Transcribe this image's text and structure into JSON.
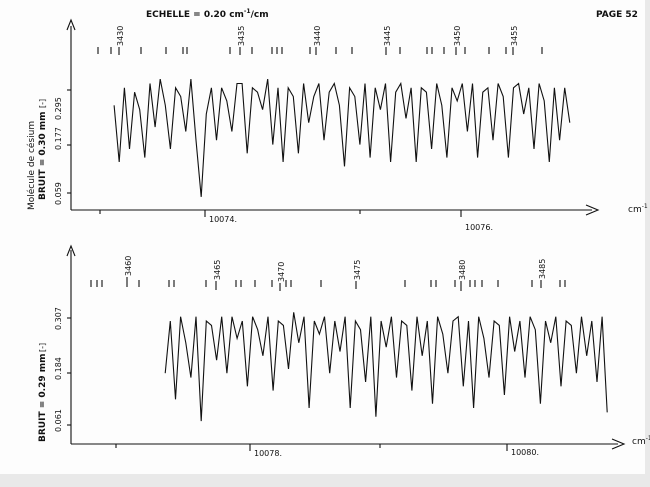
{
  "header": {
    "scale_prefix": "ECHELLE = 0.20 cm",
    "scale_sup": "-1",
    "scale_suffix": "/cm",
    "page": "PAGE 52"
  },
  "chart_data": [
    {
      "type": "line",
      "panel": "top",
      "side_labels": {
        "molecule": "Molécule de césium",
        "noise": "BRUIT = 0.30 mm",
        "bracket": "[-]"
      },
      "y_ticks": [
        "0.295",
        "0.177",
        "0.059"
      ],
      "x_calibration": [
        {
          "label": "10074.",
          "value": 10074
        },
        {
          "label": "10076.",
          "value": 10076
        }
      ],
      "x_unit": "cm",
      "x_unit_sup": "-1",
      "line_numbers": [
        "3430",
        "3435",
        "3440",
        "3445",
        "3450",
        "3455"
      ],
      "series": [
        {
          "x": [
            10073.29,
            10073.33,
            10073.37,
            10073.41,
            10073.45,
            10073.49,
            10073.53,
            10073.57,
            10073.61,
            10073.65,
            10073.69,
            10073.73,
            10073.77,
            10073.81,
            10073.85,
            10073.89,
            10073.93,
            10073.97,
            10074.01,
            10074.05,
            10074.09,
            10074.13,
            10074.17,
            10074.21,
            10074.25,
            10074.29,
            10074.33,
            10074.37,
            10074.41,
            10074.45,
            10074.49,
            10074.53,
            10074.57,
            10074.61,
            10074.65,
            10074.69,
            10074.73,
            10074.77,
            10074.81,
            10074.85,
            10074.89,
            10074.93,
            10074.97,
            10075.01,
            10075.05,
            10075.09,
            10075.13,
            10075.17,
            10075.21,
            10075.25,
            10075.29,
            10075.33,
            10075.37,
            10075.41,
            10075.45,
            10075.49,
            10075.53,
            10075.57,
            10075.61,
            10075.65,
            10075.69,
            10075.73,
            10075.77,
            10075.81,
            10075.85,
            10075.89,
            10075.93,
            10075.97,
            10076.01,
            10076.05,
            10076.09,
            10076.13,
            10076.17,
            10076.21,
            10076.25,
            10076.29,
            10076.33,
            10076.37,
            10076.41,
            10076.45,
            10076.49,
            10076.53,
            10076.57,
            10076.61,
            10076.65,
            10076.69,
            10076.73,
            10076.77,
            10076.81,
            10076.85
          ],
          "y": [
            0.26,
            0.13,
            0.3,
            0.16,
            0.29,
            0.25,
            0.14,
            0.31,
            0.21,
            0.32,
            0.26,
            0.16,
            0.3,
            0.28,
            0.2,
            0.32,
            0.18,
            0.05,
            0.24,
            0.3,
            0.18,
            0.3,
            0.27,
            0.2,
            0.31,
            0.31,
            0.15,
            0.3,
            0.29,
            0.25,
            0.32,
            0.17,
            0.3,
            0.13,
            0.3,
            0.28,
            0.15,
            0.31,
            0.22,
            0.28,
            0.31,
            0.18,
            0.29,
            0.31,
            0.26,
            0.12,
            0.3,
            0.28,
            0.17,
            0.31,
            0.14,
            0.3,
            0.25,
            0.31,
            0.13,
            0.29,
            0.31,
            0.23,
            0.3,
            0.13,
            0.3,
            0.29,
            0.16,
            0.31,
            0.26,
            0.14,
            0.3,
            0.27,
            0.31,
            0.2,
            0.31,
            0.14,
            0.29,
            0.3,
            0.18,
            0.31,
            0.28,
            0.14,
            0.3,
            0.31,
            0.24,
            0.3,
            0.16,
            0.31,
            0.27,
            0.13,
            0.3,
            0.18,
            0.3,
            0.22
          ]
        }
      ]
    },
    {
      "type": "line",
      "panel": "bottom",
      "side_labels": {
        "noise": "BRUIT = 0.29 mm",
        "bracket": "[-]"
      },
      "y_ticks": [
        "0.307",
        "0.184",
        "0.061"
      ],
      "x_calibration": [
        {
          "label": "10078.",
          "value": 10078
        },
        {
          "label": "10080.",
          "value": 10080
        }
      ],
      "x_unit": "cm",
      "x_unit_sup": "-1",
      "line_numbers": [
        "3460",
        "3465",
        "3470",
        "3475",
        "3480",
        "3485"
      ],
      "series": [
        {
          "x": [
            10077.34,
            10077.38,
            10077.42,
            10077.46,
            10077.5,
            10077.54,
            10077.58,
            10077.62,
            10077.66,
            10077.7,
            10077.74,
            10077.78,
            10077.82,
            10077.86,
            10077.9,
            10077.94,
            10077.98,
            10078.02,
            10078.06,
            10078.1,
            10078.14,
            10078.18,
            10078.22,
            10078.26,
            10078.3,
            10078.34,
            10078.38,
            10078.42,
            10078.46,
            10078.5,
            10078.54,
            10078.58,
            10078.62,
            10078.66,
            10078.7,
            10078.74,
            10078.78,
            10078.82,
            10078.86,
            10078.9,
            10078.94,
            10078.98,
            10079.02,
            10079.06,
            10079.1,
            10079.14,
            10079.18,
            10079.22,
            10079.26,
            10079.3,
            10079.34,
            10079.38,
            10079.42,
            10079.46,
            10079.5,
            10079.54,
            10079.58,
            10079.62,
            10079.66,
            10079.7,
            10079.74,
            10079.78,
            10079.82,
            10079.86,
            10079.9,
            10079.94,
            10079.98,
            10080.02,
            10080.06,
            10080.1,
            10080.14,
            10080.18,
            10080.22,
            10080.26,
            10080.3,
            10080.34,
            10080.38,
            10080.42,
            10080.46,
            10080.5,
            10080.54,
            10080.58,
            10080.62,
            10080.66,
            10080.7,
            10080.74,
            10080.78
          ],
          "y": [
            0.18,
            0.3,
            0.12,
            0.31,
            0.25,
            0.17,
            0.31,
            0.07,
            0.3,
            0.29,
            0.21,
            0.31,
            0.18,
            0.31,
            0.26,
            0.3,
            0.15,
            0.31,
            0.28,
            0.22,
            0.31,
            0.14,
            0.3,
            0.29,
            0.19,
            0.32,
            0.25,
            0.31,
            0.1,
            0.3,
            0.27,
            0.31,
            0.18,
            0.3,
            0.23,
            0.31,
            0.1,
            0.3,
            0.28,
            0.16,
            0.31,
            0.08,
            0.3,
            0.24,
            0.31,
            0.17,
            0.3,
            0.29,
            0.14,
            0.31,
            0.22,
            0.3,
            0.11,
            0.31,
            0.27,
            0.18,
            0.3,
            0.31,
            0.15,
            0.3,
            0.1,
            0.31,
            0.26,
            0.17,
            0.3,
            0.29,
            0.13,
            0.31,
            0.23,
            0.3,
            0.17,
            0.31,
            0.28,
            0.11,
            0.3,
            0.25,
            0.31,
            0.15,
            0.3,
            0.29,
            0.18,
            0.31,
            0.22,
            0.3,
            0.16,
            0.31,
            0.09
          ]
        }
      ]
    }
  ]
}
